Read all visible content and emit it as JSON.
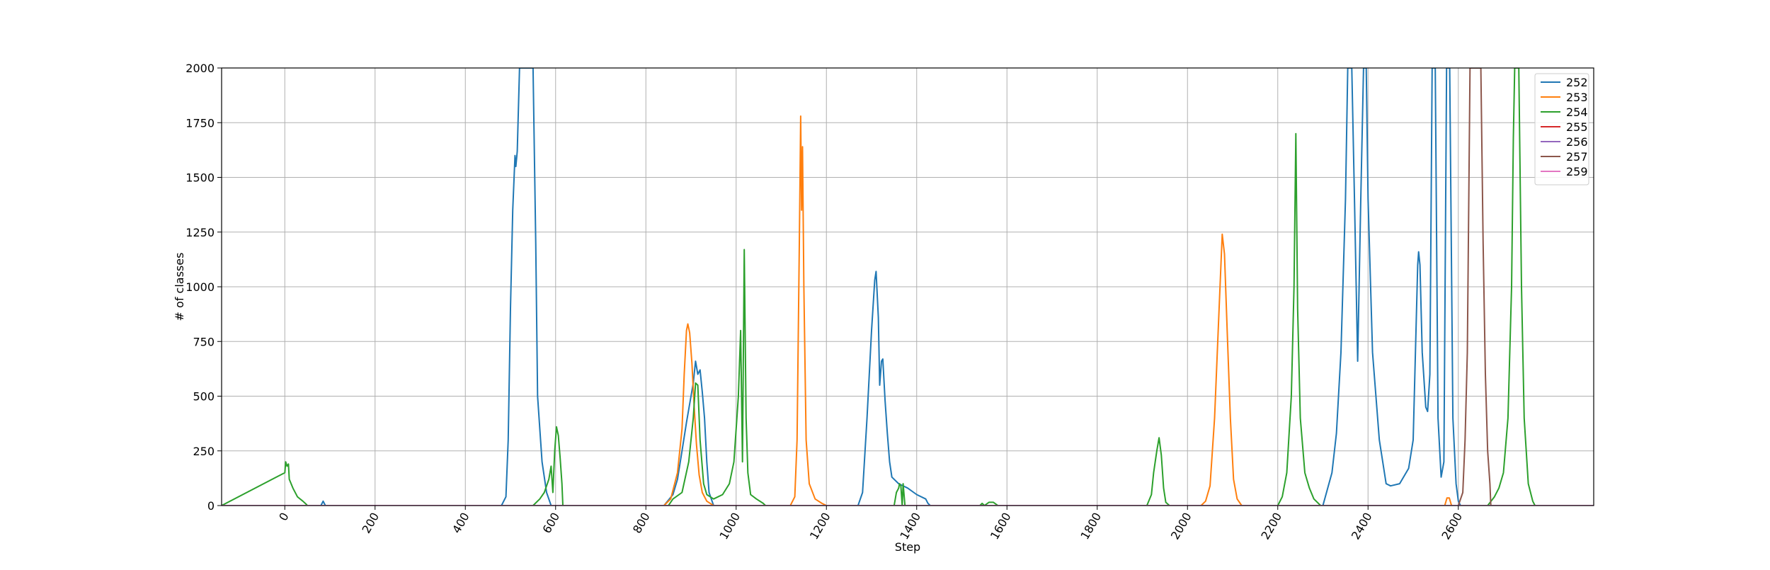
{
  "chart_data": {
    "type": "line",
    "title": "",
    "xlabel": "Step",
    "ylabel": "# of classes",
    "xlim": [
      -140,
      2900
    ],
    "ylim": [
      0,
      2000
    ],
    "x_ticks": [
      0,
      200,
      400,
      600,
      800,
      1000,
      1200,
      1400,
      1600,
      1800,
      2000,
      2200,
      2400,
      2600
    ],
    "y_ticks": [
      0,
      250,
      500,
      750,
      1000,
      1250,
      1500,
      1750,
      2000
    ],
    "x_tick_labels": [
      "0",
      "200",
      "400",
      "600",
      "800",
      "1000",
      "1200",
      "1400",
      "1600",
      "1800",
      "2000",
      "2200",
      "2400",
      "2600"
    ],
    "y_tick_labels": [
      "0",
      "250",
      "500",
      "750",
      "1000",
      "1250",
      "1500",
      "1750",
      "2000"
    ],
    "grid": true,
    "legend_position": "top-right",
    "series": [
      {
        "name": "252",
        "color": "#1f77b4",
        "points": [
          [
            -140,
            0
          ],
          [
            80,
            0
          ],
          [
            85,
            20
          ],
          [
            90,
            0
          ],
          [
            480,
            0
          ],
          [
            490,
            40
          ],
          [
            495,
            300
          ],
          [
            500,
            900
          ],
          [
            505,
            1350
          ],
          [
            510,
            1600
          ],
          [
            512,
            1550
          ],
          [
            515,
            1620
          ],
          [
            520,
            2000
          ],
          [
            550,
            2000
          ],
          [
            556,
            1200
          ],
          [
            560,
            500
          ],
          [
            570,
            200
          ],
          [
            580,
            60
          ],
          [
            590,
            0
          ],
          [
            840,
            0
          ],
          [
            860,
            50
          ],
          [
            870,
            120
          ],
          [
            880,
            250
          ],
          [
            890,
            380
          ],
          [
            900,
            500
          ],
          [
            905,
            560
          ],
          [
            910,
            660
          ],
          [
            915,
            600
          ],
          [
            920,
            620
          ],
          [
            925,
            520
          ],
          [
            930,
            400
          ],
          [
            935,
            200
          ],
          [
            940,
            60
          ],
          [
            950,
            0
          ],
          [
            1270,
            0
          ],
          [
            1280,
            60
          ],
          [
            1290,
            400
          ],
          [
            1300,
            800
          ],
          [
            1307,
            1030
          ],
          [
            1310,
            1070
          ],
          [
            1315,
            860
          ],
          [
            1318,
            550
          ],
          [
            1322,
            660
          ],
          [
            1325,
            670
          ],
          [
            1330,
            480
          ],
          [
            1335,
            330
          ],
          [
            1340,
            200
          ],
          [
            1345,
            130
          ],
          [
            1360,
            100
          ],
          [
            1380,
            80
          ],
          [
            1400,
            50
          ],
          [
            1420,
            30
          ],
          [
            1425,
            10
          ],
          [
            1430,
            0
          ],
          [
            2300,
            0
          ],
          [
            2320,
            150
          ],
          [
            2330,
            330
          ],
          [
            2340,
            700
          ],
          [
            2350,
            1400
          ],
          [
            2355,
            2000
          ],
          [
            2364,
            2000
          ],
          [
            2370,
            1400
          ],
          [
            2377,
            660
          ],
          [
            2384,
            1400
          ],
          [
            2390,
            2000
          ],
          [
            2396,
            2000
          ],
          [
            2400,
            1400
          ],
          [
            2410,
            700
          ],
          [
            2425,
            300
          ],
          [
            2440,
            100
          ],
          [
            2450,
            90
          ],
          [
            2470,
            100
          ],
          [
            2490,
            170
          ],
          [
            2500,
            300
          ],
          [
            2505,
            700
          ],
          [
            2510,
            1100
          ],
          [
            2512,
            1160
          ],
          [
            2515,
            1100
          ],
          [
            2520,
            700
          ],
          [
            2528,
            450
          ],
          [
            2532,
            430
          ],
          [
            2537,
            600
          ],
          [
            2542,
            2000
          ],
          [
            2549,
            2000
          ],
          [
            2555,
            400
          ],
          [
            2562,
            130
          ],
          [
            2568,
            200
          ],
          [
            2574,
            2000
          ],
          [
            2581,
            2000
          ],
          [
            2588,
            400
          ],
          [
            2595,
            100
          ],
          [
            2600,
            20
          ],
          [
            2605,
            0
          ],
          [
            2900,
            0
          ]
        ]
      },
      {
        "name": "253",
        "color": "#ff7f0e",
        "points": [
          [
            -140,
            0
          ],
          [
            840,
            0
          ],
          [
            855,
            30
          ],
          [
            870,
            150
          ],
          [
            880,
            350
          ],
          [
            885,
            600
          ],
          [
            890,
            800
          ],
          [
            893,
            830
          ],
          [
            897,
            790
          ],
          [
            902,
            650
          ],
          [
            907,
            450
          ],
          [
            912,
            280
          ],
          [
            918,
            140
          ],
          [
            925,
            60
          ],
          [
            935,
            20
          ],
          [
            950,
            0
          ],
          [
            1120,
            0
          ],
          [
            1130,
            40
          ],
          [
            1135,
            300
          ],
          [
            1140,
            1200
          ],
          [
            1143,
            1780
          ],
          [
            1145,
            1350
          ],
          [
            1147,
            1640
          ],
          [
            1150,
            1000
          ],
          [
            1155,
            300
          ],
          [
            1162,
            100
          ],
          [
            1175,
            30
          ],
          [
            1190,
            10
          ],
          [
            1200,
            0
          ],
          [
            2030,
            0
          ],
          [
            2040,
            20
          ],
          [
            2050,
            90
          ],
          [
            2060,
            400
          ],
          [
            2070,
            900
          ],
          [
            2077,
            1240
          ],
          [
            2082,
            1150
          ],
          [
            2088,
            800
          ],
          [
            2095,
            400
          ],
          [
            2102,
            120
          ],
          [
            2110,
            30
          ],
          [
            2120,
            0
          ],
          [
            2570,
            0
          ],
          [
            2575,
            35
          ],
          [
            2580,
            35
          ],
          [
            2585,
            0
          ],
          [
            2900,
            0
          ]
        ]
      },
      {
        "name": "254",
        "color": "#2ca02c",
        "points": [
          [
            -140,
            0
          ],
          [
            0,
            150
          ],
          [
            2,
            200
          ],
          [
            5,
            180
          ],
          [
            8,
            190
          ],
          [
            10,
            120
          ],
          [
            18,
            80
          ],
          [
            28,
            40
          ],
          [
            40,
            20
          ],
          [
            48,
            5
          ],
          [
            50,
            0
          ],
          [
            550,
            0
          ],
          [
            565,
            30
          ],
          [
            575,
            60
          ],
          [
            585,
            120
          ],
          [
            590,
            180
          ],
          [
            594,
            60
          ],
          [
            598,
            250
          ],
          [
            602,
            360
          ],
          [
            606,
            320
          ],
          [
            610,
            220
          ],
          [
            614,
            100
          ],
          [
            616,
            0
          ],
          [
            850,
            0
          ],
          [
            860,
            30
          ],
          [
            880,
            60
          ],
          [
            895,
            200
          ],
          [
            905,
            400
          ],
          [
            910,
            560
          ],
          [
            915,
            550
          ],
          [
            920,
            300
          ],
          [
            928,
            100
          ],
          [
            935,
            50
          ],
          [
            950,
            30
          ],
          [
            970,
            50
          ],
          [
            985,
            100
          ],
          [
            995,
            200
          ],
          [
            1005,
            500
          ],
          [
            1010,
            800
          ],
          [
            1014,
            200
          ],
          [
            1018,
            1170
          ],
          [
            1022,
            400
          ],
          [
            1026,
            150
          ],
          [
            1032,
            50
          ],
          [
            1045,
            30
          ],
          [
            1060,
            10
          ],
          [
            1065,
            0
          ],
          [
            1350,
            0
          ],
          [
            1355,
            60
          ],
          [
            1360,
            80
          ],
          [
            1362,
            100
          ],
          [
            1365,
            90
          ],
          [
            1368,
            0
          ],
          [
            1370,
            100
          ],
          [
            1374,
            0
          ],
          [
            1540,
            0
          ],
          [
            1545,
            10
          ],
          [
            1550,
            0
          ],
          [
            1560,
            15
          ],
          [
            1570,
            15
          ],
          [
            1580,
            0
          ],
          [
            1910,
            0
          ],
          [
            1920,
            50
          ],
          [
            1925,
            150
          ],
          [
            1932,
            250
          ],
          [
            1937,
            310
          ],
          [
            1942,
            230
          ],
          [
            1947,
            80
          ],
          [
            1952,
            15
          ],
          [
            1960,
            0
          ],
          [
            2200,
            0
          ],
          [
            2210,
            40
          ],
          [
            2220,
            150
          ],
          [
            2230,
            500
          ],
          [
            2236,
            1000
          ],
          [
            2240,
            1700
          ],
          [
            2244,
            900
          ],
          [
            2250,
            400
          ],
          [
            2260,
            150
          ],
          [
            2270,
            80
          ],
          [
            2280,
            30
          ],
          [
            2295,
            0
          ],
          [
            2665,
            0
          ],
          [
            2680,
            40
          ],
          [
            2690,
            80
          ],
          [
            2700,
            150
          ],
          [
            2710,
            400
          ],
          [
            2718,
            1000
          ],
          [
            2722,
            1680
          ],
          [
            2725,
            2000
          ],
          [
            2734,
            2000
          ],
          [
            2740,
            1000
          ],
          [
            2746,
            400
          ],
          [
            2755,
            100
          ],
          [
            2765,
            20
          ],
          [
            2770,
            0
          ],
          [
            2900,
            0
          ]
        ]
      },
      {
        "name": "255",
        "color": "#d62728",
        "points": [
          [
            -140,
            0
          ],
          [
            2900,
            0
          ]
        ]
      },
      {
        "name": "256",
        "color": "#9467bd",
        "points": [
          [
            -140,
            0
          ],
          [
            2900,
            0
          ]
        ]
      },
      {
        "name": "257",
        "color": "#8c564b",
        "points": [
          [
            -140,
            0
          ],
          [
            2600,
            0
          ],
          [
            2610,
            60
          ],
          [
            2615,
            300
          ],
          [
            2620,
            700
          ],
          [
            2626,
            2000
          ],
          [
            2650,
            2000
          ],
          [
            2655,
            1200
          ],
          [
            2660,
            600
          ],
          [
            2665,
            250
          ],
          [
            2670,
            100
          ],
          [
            2672,
            0
          ],
          [
            2900,
            0
          ]
        ]
      },
      {
        "name": "259",
        "color": "#e377c2",
        "points": [
          [
            -140,
            0
          ],
          [
            2900,
            0
          ]
        ]
      }
    ]
  }
}
